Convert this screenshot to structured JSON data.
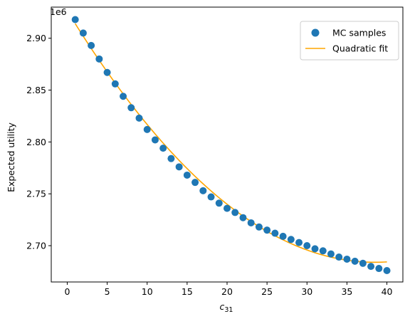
{
  "chart_data": {
    "type": "scatter",
    "title": "",
    "xlabel_base": "c",
    "xlabel_sub": "31",
    "ylabel": "Expected utility",
    "y_offset_label": "1e6",
    "xlim": [
      -2,
      42
    ],
    "ylim": [
      2.665,
      2.93
    ],
    "xticks": [
      0,
      5,
      10,
      15,
      20,
      25,
      30,
      35,
      40
    ],
    "yticks": [
      2.7,
      2.75,
      2.8,
      2.85,
      2.9
    ],
    "ytick_labels": [
      "2.70",
      "2.75",
      "2.80",
      "2.85",
      "2.90"
    ],
    "grid": false,
    "legend_position": "top-right",
    "series": [
      {
        "name": "MC samples",
        "kind": "scatter",
        "color": "#1f77b4",
        "x": [
          1,
          2,
          3,
          4,
          5,
          6,
          7,
          8,
          9,
          10,
          11,
          12,
          13,
          14,
          15,
          16,
          17,
          18,
          19,
          20,
          21,
          22,
          23,
          24,
          25,
          26,
          27,
          28,
          29,
          30,
          31,
          32,
          33,
          34,
          35,
          36,
          37,
          38,
          39,
          40
        ],
        "y": [
          2.918,
          2.905,
          2.893,
          2.88,
          2.867,
          2.856,
          2.844,
          2.833,
          2.823,
          2.812,
          2.802,
          2.794,
          2.784,
          2.776,
          2.768,
          2.761,
          2.753,
          2.747,
          2.741,
          2.736,
          2.732,
          2.727,
          2.722,
          2.718,
          2.715,
          2.712,
          2.709,
          2.706,
          2.703,
          2.7,
          2.697,
          2.695,
          2.692,
          2.689,
          2.687,
          2.685,
          2.683,
          2.68,
          2.678,
          2.676
        ]
      },
      {
        "name": "Quadratic fit",
        "kind": "line",
        "color": "#ffa500",
        "fit": {
          "vertex_x": 38.5,
          "vertex_y": 2.684,
          "a": 0.0001636
        },
        "x_range": [
          1,
          40
        ]
      }
    ]
  }
}
